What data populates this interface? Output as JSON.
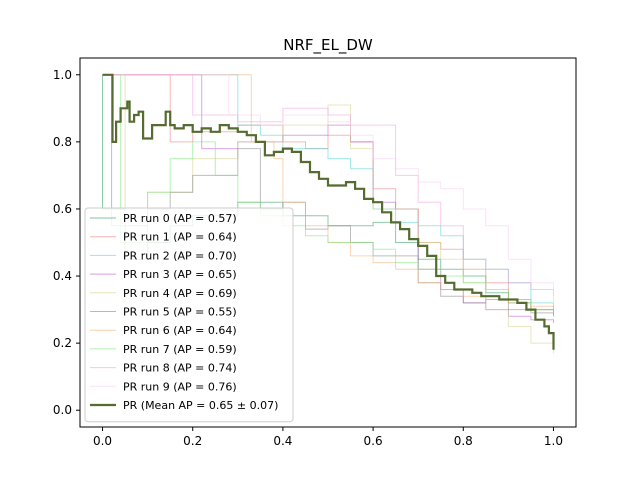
{
  "chart_data": {
    "type": "line",
    "title": "NRF_EL_DW",
    "xlabel": "",
    "ylabel": "",
    "xlim": [
      -0.05,
      1.05
    ],
    "ylim": [
      -0.05,
      1.05
    ],
    "xticks": [
      0.0,
      0.2,
      0.4,
      0.6,
      0.8,
      1.0
    ],
    "yticks": [
      0.0,
      0.2,
      0.4,
      0.6,
      0.8,
      1.0
    ],
    "xtick_labels": [
      "0.0",
      "0.2",
      "0.4",
      "0.6",
      "0.8",
      "1.0"
    ],
    "ytick_labels": [
      "0.0",
      "0.2",
      "0.4",
      "0.6",
      "0.8",
      "1.0"
    ],
    "grid": false,
    "legend_position": "lower-left",
    "series": [
      {
        "name": "PR run 0 (AP = 0.57)",
        "color": "#2ca25f",
        "points": [
          [
            0,
            1
          ],
          [
            0.0,
            1
          ],
          [
            0.0,
            0.6
          ],
          [
            0.05,
            0.45
          ],
          [
            0.1,
            0.5
          ],
          [
            0.15,
            0.55
          ],
          [
            0.2,
            0.58
          ],
          [
            0.3,
            0.62
          ],
          [
            0.4,
            0.58
          ],
          [
            0.5,
            0.55
          ],
          [
            0.6,
            0.56
          ],
          [
            0.65,
            0.5
          ],
          [
            0.7,
            0.45
          ],
          [
            0.75,
            0.42
          ],
          [
            0.8,
            0.4
          ],
          [
            0.85,
            0.35
          ],
          [
            0.9,
            0.32
          ],
          [
            0.95,
            0.3
          ],
          [
            1.0,
            0.29
          ]
        ]
      },
      {
        "name": "PR run 1 (AP = 0.64)",
        "color": "#f47c7c",
        "points": [
          [
            0,
            1
          ],
          [
            0.15,
            1
          ],
          [
            0.15,
            0.8
          ],
          [
            0.2,
            0.83
          ],
          [
            0.3,
            0.85
          ],
          [
            0.4,
            0.8
          ],
          [
            0.45,
            0.78
          ],
          [
            0.5,
            0.82
          ],
          [
            0.55,
            0.8
          ],
          [
            0.6,
            0.66
          ],
          [
            0.65,
            0.6
          ],
          [
            0.7,
            0.5
          ],
          [
            0.75,
            0.48
          ],
          [
            0.8,
            0.42
          ],
          [
            0.85,
            0.38
          ],
          [
            0.9,
            0.33
          ],
          [
            0.95,
            0.3
          ],
          [
            1.0,
            0.28
          ]
        ]
      },
      {
        "name": "PR run 2 (AP = 0.70)",
        "color": "#56d4d4",
        "points": [
          [
            0,
            1
          ],
          [
            0.3,
            1
          ],
          [
            0.3,
            0.85
          ],
          [
            0.35,
            0.82
          ],
          [
            0.4,
            0.78
          ],
          [
            0.5,
            0.75
          ],
          [
            0.55,
            0.72
          ],
          [
            0.6,
            0.6
          ],
          [
            0.65,
            0.56
          ],
          [
            0.7,
            0.55
          ],
          [
            0.75,
            0.52
          ],
          [
            0.8,
            0.45
          ],
          [
            0.85,
            0.42
          ],
          [
            0.9,
            0.38
          ],
          [
            0.95,
            0.32
          ],
          [
            1.0,
            0.29
          ]
        ]
      },
      {
        "name": "PR run 3 (AP = 0.65)",
        "color": "#c05cd4",
        "points": [
          [
            0,
            1
          ],
          [
            0.22,
            1
          ],
          [
            0.22,
            0.78
          ],
          [
            0.3,
            0.8
          ],
          [
            0.4,
            0.82
          ],
          [
            0.5,
            0.85
          ],
          [
            0.55,
            0.8
          ],
          [
            0.6,
            0.62
          ],
          [
            0.65,
            0.6
          ],
          [
            0.7,
            0.42
          ],
          [
            0.75,
            0.36
          ],
          [
            0.8,
            0.32
          ],
          [
            0.85,
            0.3
          ],
          [
            0.9,
            0.28
          ],
          [
            0.95,
            0.27
          ],
          [
            1.0,
            0.26
          ]
        ]
      },
      {
        "name": "PR run 4 (AP = 0.69)",
        "color": "#d4d48a",
        "points": [
          [
            0,
            1
          ],
          [
            0.05,
            1
          ],
          [
            0.05,
            0.55
          ],
          [
            0.1,
            0.65
          ],
          [
            0.2,
            0.75
          ],
          [
            0.3,
            0.8
          ],
          [
            0.4,
            0.85
          ],
          [
            0.5,
            0.91
          ],
          [
            0.55,
            0.78
          ],
          [
            0.6,
            0.6
          ],
          [
            0.7,
            0.5
          ],
          [
            0.75,
            0.45
          ],
          [
            0.8,
            0.38
          ],
          [
            0.85,
            0.3
          ],
          [
            0.9,
            0.25
          ],
          [
            0.95,
            0.2
          ],
          [
            1.0,
            0.17
          ]
        ]
      },
      {
        "name": "PR run 5 (AP = 0.55)",
        "color": "#888888",
        "points": [
          [
            0,
            1
          ],
          [
            0.02,
            1
          ],
          [
            0.02,
            0.55
          ],
          [
            0.1,
            0.6
          ],
          [
            0.15,
            0.65
          ],
          [
            0.2,
            0.7
          ],
          [
            0.3,
            0.78
          ],
          [
            0.35,
            0.6
          ],
          [
            0.4,
            0.62
          ],
          [
            0.45,
            0.54
          ],
          [
            0.5,
            0.55
          ],
          [
            0.55,
            0.5
          ],
          [
            0.6,
            0.46
          ],
          [
            0.7,
            0.38
          ],
          [
            0.75,
            0.34
          ],
          [
            0.8,
            0.32
          ],
          [
            0.85,
            0.33
          ],
          [
            0.9,
            0.3
          ],
          [
            0.95,
            0.29
          ],
          [
            1.0,
            0.28
          ]
        ]
      },
      {
        "name": "PR run 6 (AP = 0.64)",
        "color": "#f5b07a",
        "points": [
          [
            0,
            1
          ],
          [
            0.33,
            1
          ],
          [
            0.33,
            0.8
          ],
          [
            0.38,
            0.75
          ],
          [
            0.4,
            0.62
          ],
          [
            0.45,
            0.55
          ],
          [
            0.5,
            0.5
          ],
          [
            0.55,
            0.46
          ],
          [
            0.6,
            0.44
          ],
          [
            0.65,
            0.42
          ],
          [
            0.7,
            0.38
          ],
          [
            0.75,
            0.36
          ],
          [
            0.8,
            0.34
          ],
          [
            0.85,
            0.33
          ],
          [
            0.9,
            0.32
          ],
          [
            0.95,
            0.31
          ],
          [
            1.0,
            0.3
          ]
        ]
      },
      {
        "name": "PR run 7 (AP = 0.59)",
        "color": "#7ae87a",
        "points": [
          [
            0,
            1
          ],
          [
            0.04,
            1
          ],
          [
            0.04,
            0.5
          ],
          [
            0.1,
            0.65
          ],
          [
            0.15,
            0.75
          ],
          [
            0.2,
            0.8
          ],
          [
            0.25,
            0.7
          ],
          [
            0.3,
            0.62
          ],
          [
            0.35,
            0.58
          ],
          [
            0.4,
            0.55
          ],
          [
            0.45,
            0.52
          ],
          [
            0.5,
            0.5
          ],
          [
            0.55,
            0.5
          ],
          [
            0.6,
            0.48
          ],
          [
            0.65,
            0.44
          ],
          [
            0.7,
            0.42
          ],
          [
            0.75,
            0.4
          ],
          [
            0.8,
            0.38
          ],
          [
            0.85,
            0.36
          ],
          [
            0.9,
            0.33
          ],
          [
            0.95,
            0.3
          ],
          [
            1.0,
            0.28
          ]
        ]
      },
      {
        "name": "PR run 8 (AP = 0.74)",
        "color": "#f0a0e0",
        "points": [
          [
            0,
            1
          ],
          [
            0.2,
            1
          ],
          [
            0.2,
            0.88
          ],
          [
            0.3,
            0.86
          ],
          [
            0.4,
            0.9
          ],
          [
            0.5,
            0.88
          ],
          [
            0.55,
            0.85
          ],
          [
            0.62,
            0.85
          ],
          [
            0.65,
            0.7
          ],
          [
            0.7,
            0.62
          ],
          [
            0.75,
            0.55
          ],
          [
            0.8,
            0.45
          ],
          [
            0.85,
            0.42
          ],
          [
            0.9,
            0.38
          ],
          [
            0.95,
            0.36
          ],
          [
            1.0,
            0.34
          ]
        ]
      },
      {
        "name": "PR run 9 (AP = 0.76)",
        "color": "#f7cdef",
        "points": [
          [
            0,
            1
          ],
          [
            0.28,
            1
          ],
          [
            0.28,
            0.88
          ],
          [
            0.35,
            0.85
          ],
          [
            0.4,
            0.88
          ],
          [
            0.5,
            0.86
          ],
          [
            0.55,
            0.82
          ],
          [
            0.6,
            0.75
          ],
          [
            0.65,
            0.72
          ],
          [
            0.7,
            0.68
          ],
          [
            0.75,
            0.66
          ],
          [
            0.8,
            0.6
          ],
          [
            0.85,
            0.55
          ],
          [
            0.9,
            0.45
          ],
          [
            0.95,
            0.38
          ],
          [
            1.0,
            0.32
          ]
        ]
      },
      {
        "name": "PR (Mean AP = 0.65 ± 0.07)",
        "color": "#556b2f",
        "mean": true,
        "points": [
          [
            0,
            1
          ],
          [
            0.02,
            1
          ],
          [
            0.022,
            0.8
          ],
          [
            0.03,
            0.86
          ],
          [
            0.04,
            0.9
          ],
          [
            0.055,
            0.92
          ],
          [
            0.06,
            0.86
          ],
          [
            0.07,
            0.88
          ],
          [
            0.08,
            0.89
          ],
          [
            0.09,
            0.81
          ],
          [
            0.11,
            0.85
          ],
          [
            0.14,
            0.89
          ],
          [
            0.15,
            0.85
          ],
          [
            0.16,
            0.84
          ],
          [
            0.18,
            0.85
          ],
          [
            0.2,
            0.83
          ],
          [
            0.22,
            0.84
          ],
          [
            0.24,
            0.83
          ],
          [
            0.26,
            0.85
          ],
          [
            0.28,
            0.84
          ],
          [
            0.3,
            0.83
          ],
          [
            0.32,
            0.82
          ],
          [
            0.34,
            0.8
          ],
          [
            0.36,
            0.76
          ],
          [
            0.38,
            0.77
          ],
          [
            0.4,
            0.78
          ],
          [
            0.42,
            0.77
          ],
          [
            0.44,
            0.74
          ],
          [
            0.46,
            0.71
          ],
          [
            0.48,
            0.69
          ],
          [
            0.5,
            0.67
          ],
          [
            0.52,
            0.67
          ],
          [
            0.54,
            0.68
          ],
          [
            0.56,
            0.66
          ],
          [
            0.58,
            0.63
          ],
          [
            0.6,
            0.62
          ],
          [
            0.62,
            0.59
          ],
          [
            0.64,
            0.56
          ],
          [
            0.66,
            0.54
          ],
          [
            0.68,
            0.51
          ],
          [
            0.7,
            0.49
          ],
          [
            0.72,
            0.46
          ],
          [
            0.74,
            0.4
          ],
          [
            0.76,
            0.38
          ],
          [
            0.78,
            0.36
          ],
          [
            0.8,
            0.36
          ],
          [
            0.82,
            0.35
          ],
          [
            0.84,
            0.34
          ],
          [
            0.86,
            0.34
          ],
          [
            0.88,
            0.33
          ],
          [
            0.9,
            0.33
          ],
          [
            0.92,
            0.32
          ],
          [
            0.94,
            0.3
          ],
          [
            0.96,
            0.27
          ],
          [
            0.98,
            0.25
          ],
          [
            0.99,
            0.23
          ],
          [
            1.0,
            0.18
          ]
        ]
      }
    ]
  }
}
